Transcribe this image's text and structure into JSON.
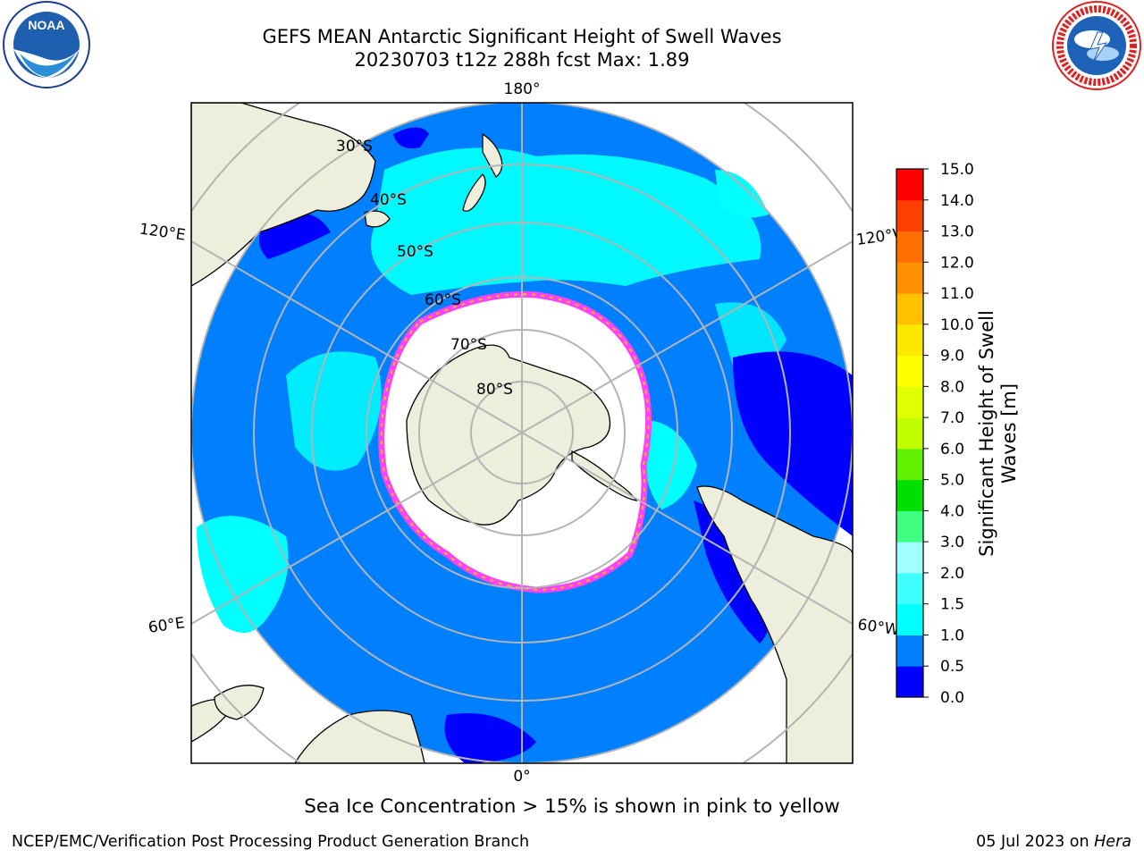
{
  "title": {
    "line1": "GEFS MEAN Antarctic Significant Height of Swell Waves",
    "line2": "20230703 t12z 288h fcst   Max: 1.89"
  },
  "logos": {
    "noaa": {
      "icon": "noaa-logo",
      "text": "NOAA"
    },
    "nws": {
      "icon": "nws-logo"
    }
  },
  "map": {
    "projection": "south polar stereographic",
    "lat_labels": [
      "30°S",
      "40°S",
      "50°S",
      "60°S",
      "70°S",
      "80°S"
    ],
    "lon_labels": {
      "top": "180°",
      "bottom": "0°",
      "upper_left": "120°E",
      "lower_left": "60°E",
      "upper_right": "120°W",
      "lower_right": "60°W"
    },
    "colors": {
      "land": "#eeeedc",
      "coastline": "#000000",
      "gridline": "#b4b4b4",
      "ice_cap": "#ffffff",
      "ice_edge": "#ff40ff"
    }
  },
  "colorbar": {
    "label": "Significant Height of Swell Waves [m]",
    "ticks": [
      "0.0",
      "0.5",
      "1.0",
      "1.5",
      "2.0",
      "3.0",
      "4.0",
      "5.0",
      "6.0",
      "7.0",
      "8.0",
      "9.0",
      "10.0",
      "11.0",
      "12.0",
      "13.0",
      "14.0",
      "15.0"
    ],
    "colors": [
      "#0000ff",
      "#0080ff",
      "#00ffff",
      "#40ffff",
      "#a0ffff",
      "#40ff80",
      "#00e000",
      "#60f000",
      "#c0ff00",
      "#e0ff00",
      "#ffff00",
      "#ffe800",
      "#ffc000",
      "#ff9000",
      "#ff7000",
      "#ff4000",
      "#ff0000"
    ]
  },
  "footer": {
    "note": "Sea Ice Concentration > 15% is shown in pink to yellow",
    "left": "NCEP/EMC/Verification Post Processing Product Generation Branch",
    "date": "05 Jul 2023 on ",
    "machine": "Hera"
  }
}
